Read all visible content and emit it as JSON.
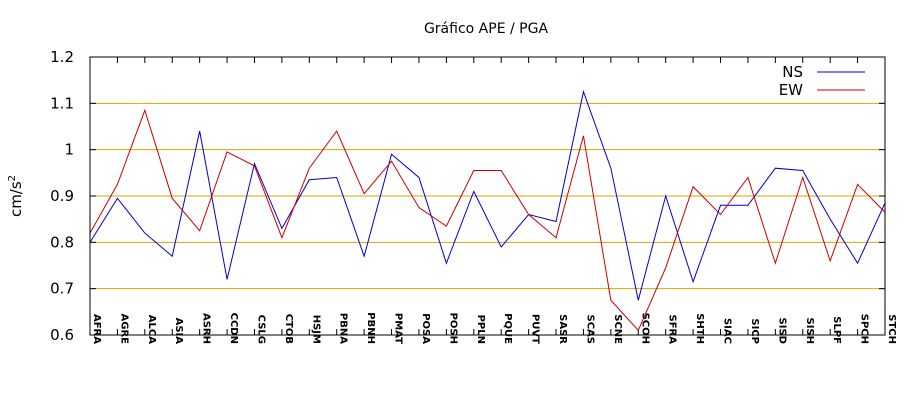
{
  "chart_data": {
    "type": "line",
    "title": "Gráfico  APE / PGA",
    "xlabel": "",
    "ylabel": "cm/s",
    "ylabel_superscript": "2",
    "ylim": [
      0.6,
      1.2
    ],
    "yticks": [
      "0.6",
      "0.7",
      "0.8",
      "0.9",
      "1",
      "1.1",
      "1.2"
    ],
    "grid": "horizontal",
    "grid_color": "#d4a800",
    "legend_position": "top-right",
    "categories": [
      "AFRA",
      "AGRE",
      "ALCA",
      "ASIA",
      "ASRH",
      "CCDN",
      "CSLG",
      "CTOB",
      "HSJM",
      "PBNA",
      "PBNH",
      "PMAT",
      "POSA",
      "POSH",
      "PPLN",
      "PQUE",
      "PUVT",
      "SASR",
      "SCAS",
      "SCNE",
      "SCOH",
      "SFRA",
      "SHTH",
      "SIAC",
      "SICP",
      "SISD",
      "SISH",
      "SLPF",
      "SPCH",
      "STCH"
    ],
    "series": [
      {
        "name": "NS",
        "color": "#0000cc",
        "values": [
          0.8,
          0.895,
          0.82,
          0.77,
          1.04,
          0.72,
          0.97,
          0.83,
          0.935,
          0.94,
          0.77,
          0.99,
          0.94,
          0.755,
          0.91,
          0.79,
          0.86,
          0.845,
          1.125,
          0.96,
          0.675,
          0.9,
          0.715,
          0.88,
          0.88,
          0.96,
          0.955,
          0.85,
          0.755,
          0.885
        ]
      },
      {
        "name": "EW",
        "color": "#cc0000",
        "values": [
          0.82,
          0.925,
          1.085,
          0.895,
          0.825,
          0.995,
          0.965,
          0.81,
          0.96,
          1.04,
          0.905,
          0.975,
          0.875,
          0.835,
          0.955,
          0.955,
          0.86,
          0.81,
          1.03,
          0.675,
          0.61,
          0.745,
          0.92,
          0.86,
          0.94,
          0.755,
          0.94,
          0.76,
          0.925,
          0.865
        ]
      }
    ]
  }
}
